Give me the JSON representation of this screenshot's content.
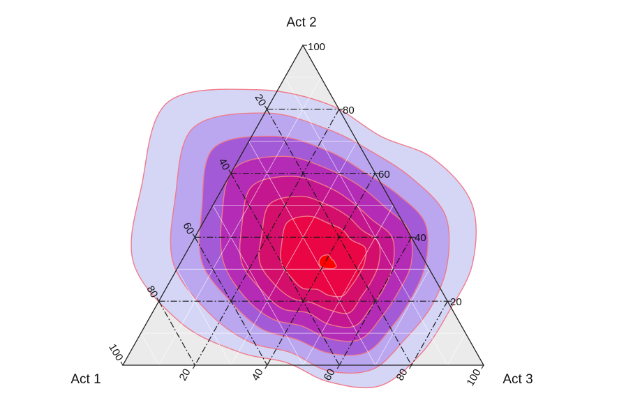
{
  "chart_data": {
    "type": "ternary-contour",
    "axes": {
      "act2": {
        "label": "Act 2",
        "ticks": [
          "20",
          "40",
          "60",
          "80",
          "100"
        ]
      },
      "act1": {
        "label": "Act 1",
        "ticks": [
          "20",
          "40",
          "60",
          "80",
          "100"
        ]
      },
      "act3": {
        "label": "Act 3",
        "ticks": [
          "20",
          "40",
          "60",
          "80",
          "100"
        ]
      }
    },
    "range": [
      0,
      100
    ],
    "grid": "dash-dot at 20, 40, 60, 80",
    "background_color": "#ebebeb",
    "contour_line_color": "#f07a8a",
    "peak": {
      "act1": 27,
      "act2": 32,
      "act3": 41
    },
    "levels": [
      {
        "level": 1,
        "fill": "#d5d6f6",
        "radii": [
          44,
          38,
          41,
          43,
          40,
          36,
          36,
          37,
          33,
          30,
          35,
          44,
          54,
          56,
          63,
          52
        ]
      },
      {
        "level": 2,
        "fill": "#baa7f0",
        "radii": [
          37,
          33,
          33,
          35,
          33,
          31,
          30,
          32,
          30,
          27,
          31,
          36,
          43,
          46,
          53,
          45
        ]
      },
      {
        "level": 3,
        "fill": "#a35ad6",
        "radii": [
          31,
          27,
          27,
          29,
          27,
          25,
          25,
          27,
          25,
          23,
          26,
          29,
          35,
          38,
          45,
          38
        ]
      },
      {
        "level": 4,
        "fill": "#b42bb6",
        "radii": [
          26,
          23,
          22,
          24,
          23,
          21,
          21,
          23,
          21,
          19,
          22,
          25,
          29,
          32,
          37,
          32
        ]
      },
      {
        "level": 5,
        "fill": "#c4168f",
        "radii": [
          21,
          18,
          17,
          19,
          18,
          17,
          17,
          19,
          17,
          15,
          18,
          20,
          24,
          26,
          30,
          26
        ]
      },
      {
        "level": 6,
        "fill": "#d40f6b",
        "radii": [
          16,
          14,
          13,
          15,
          14,
          13,
          13,
          15,
          13,
          12,
          14,
          16,
          19,
          20,
          23,
          20
        ]
      },
      {
        "level": 7,
        "fill": "#ea0545",
        "radii": [
          11,
          10,
          9,
          11,
          10,
          9,
          9,
          10,
          9,
          8,
          10,
          11,
          13,
          14,
          16,
          14
        ]
      },
      {
        "level": 8,
        "fill": "#ff0000",
        "radii": [
          2.2,
          1.6,
          1.3,
          1.6,
          1.8,
          2.4,
          2.2,
          1.8,
          1.6,
          1.7,
          2.0,
          2.4,
          2.6,
          2.6,
          2.5,
          2.3
        ]
      }
    ]
  }
}
